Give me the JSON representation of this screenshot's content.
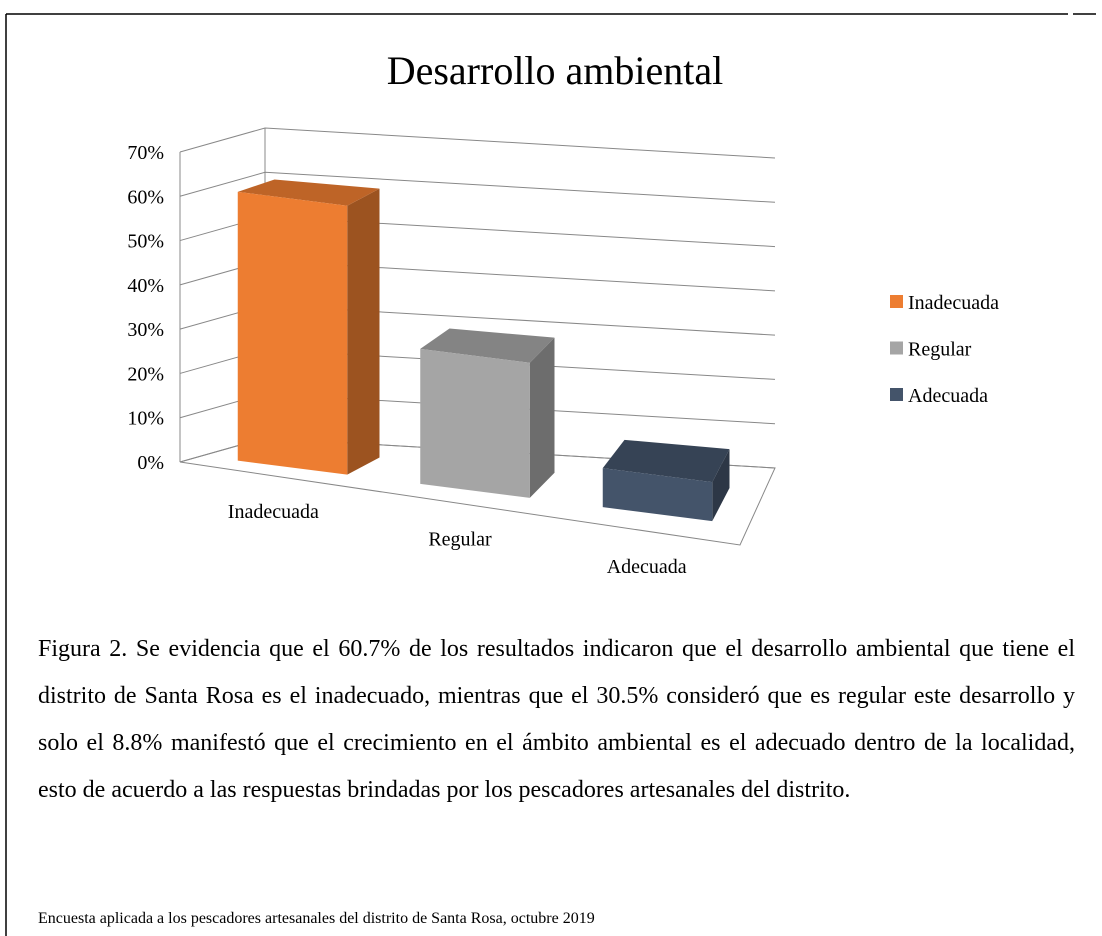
{
  "chart_data": {
    "type": "bar3d",
    "title": "Desarrollo ambiental",
    "categories": [
      "Inadecuada",
      "Regular",
      "Adecuada"
    ],
    "values": [
      60.7,
      30.5,
      8.8
    ],
    "colors": [
      "#ED7D31",
      "#A5A5A5",
      "#44546A"
    ],
    "ylim": [
      0,
      70
    ],
    "yticks": [
      {
        "value": 0,
        "label": "0%"
      },
      {
        "value": 10,
        "label": "10%"
      },
      {
        "value": 20,
        "label": "20%"
      },
      {
        "value": 30,
        "label": "30%"
      },
      {
        "value": 40,
        "label": "40%"
      },
      {
        "value": 50,
        "label": "50%"
      },
      {
        "value": 60,
        "label": "60%"
      },
      {
        "value": 70,
        "label": "70%"
      }
    ],
    "grid": true,
    "legend": "right"
  },
  "caption": "Figura 2. Se evidencia que el 60.7% de los resultados indicaron que el desarrollo ambiental que tiene el distrito de Santa Rosa es el inadecuado, mientras que el 30.5% consideró que es regular este desarrollo y solo el 8.8% manifestó que el crecimiento en el ámbito ambiental es el adecuado dentro de la localidad, esto de acuerdo a las respuestas brindadas por los pescadores artesanales del distrito.",
  "source": "Encuesta aplicada a los pescadores artesanales del distrito de Santa Rosa, octubre 2019"
}
